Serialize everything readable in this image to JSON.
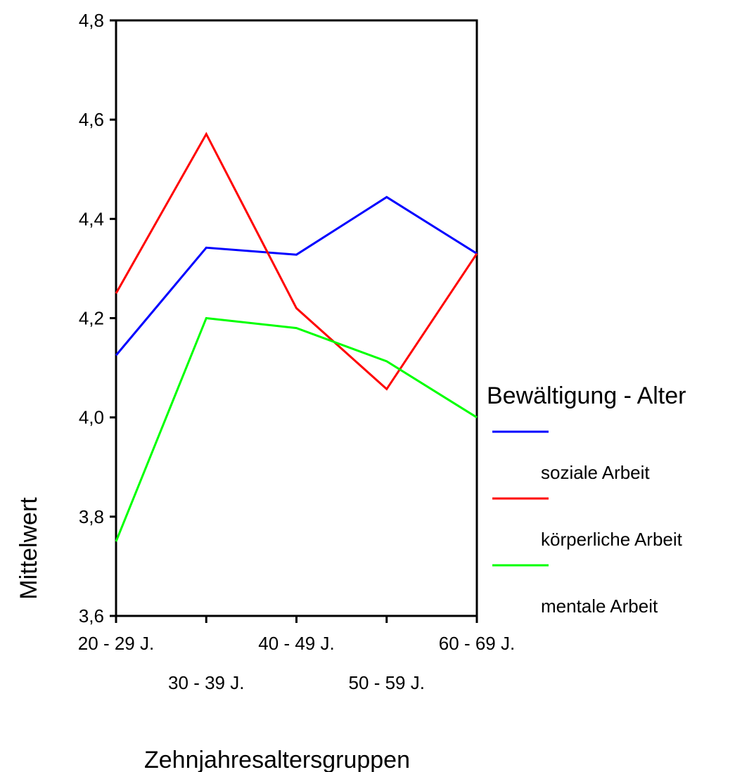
{
  "chart_data": {
    "type": "line",
    "xlabel": "Zehnjahresaltersgruppen",
    "ylabel": "Mittelwert",
    "categories": [
      "20 - 29 J.",
      "30 - 39 J.",
      "40 - 49 J.",
      "50 - 59 J.",
      "60 - 69 J."
    ],
    "ylim": [
      3.6,
      4.8
    ],
    "yticks": [
      "3,6",
      "3,8",
      "4,0",
      "4,2",
      "4,4",
      "4,6",
      "4,8"
    ],
    "ytick_values": [
      3.6,
      3.8,
      4.0,
      4.2,
      4.4,
      4.6,
      4.8
    ],
    "grid": false,
    "legend_title": "Bewältigung - Alter",
    "legend_position": "right",
    "series": [
      {
        "name": "soziale Arbeit",
        "color": "#0000ff",
        "values": [
          4.125,
          4.342,
          4.328,
          4.444,
          4.33
        ]
      },
      {
        "name": "körperliche Arbeit",
        "color": "#ff0000",
        "values": [
          4.25,
          4.571,
          4.22,
          4.057,
          4.33
        ]
      },
      {
        "name": "mentale Arbeit",
        "color": "#00ff00",
        "values": [
          3.75,
          4.2,
          4.18,
          4.113,
          4.0
        ]
      }
    ]
  }
}
